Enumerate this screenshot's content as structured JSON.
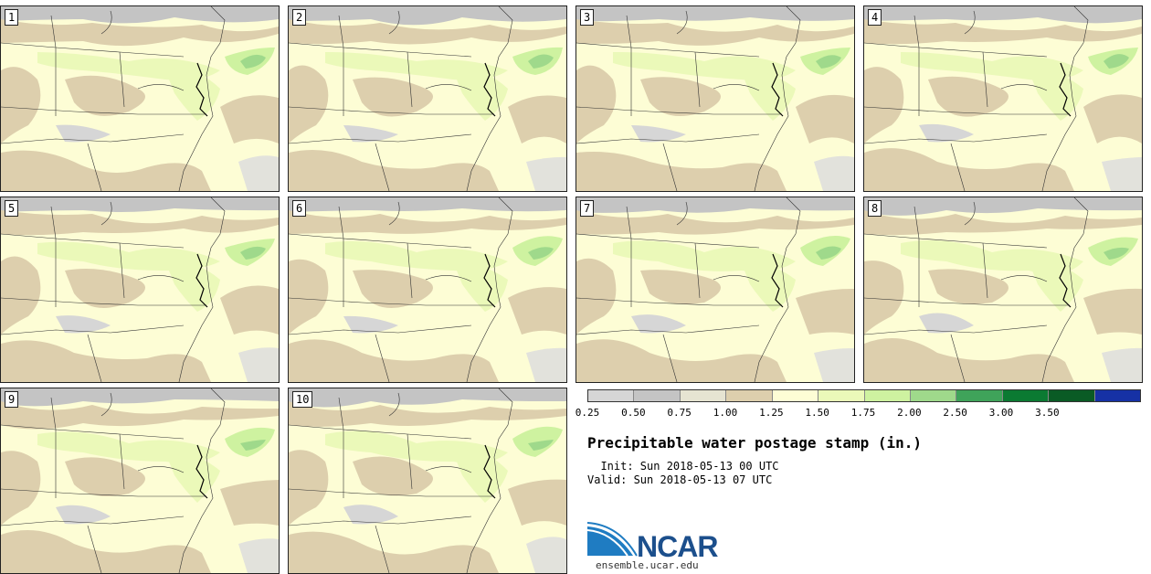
{
  "title": "Precipitable water postage stamp (in.)",
  "init_label": "  Init: Sun 2018-05-13 00 UTC",
  "valid_label": "Valid: Sun 2018-05-13 07 UTC",
  "logo_text": "NCAR",
  "url": "ensemble.ucar.edu",
  "members": [
    "1",
    "2",
    "3",
    "4",
    "5",
    "6",
    "7",
    "8",
    "9",
    "10"
  ],
  "colorbar": {
    "ticks": [
      "0.25",
      "0.50",
      "0.75",
      "1.00",
      "1.25",
      "1.50",
      "1.75",
      "2.00",
      "2.50",
      "3.00",
      "3.50"
    ],
    "colors": [
      "#d6d6d6",
      "#c4c4c4",
      "#e6e4d2",
      "#ddcfad",
      "#fdfdd5",
      "#ebf9b9",
      "#cef2a0",
      "#9fd98b",
      "#3fa35a",
      "#0b7a32",
      "#0a5b25",
      "#1631a5"
    ]
  }
}
